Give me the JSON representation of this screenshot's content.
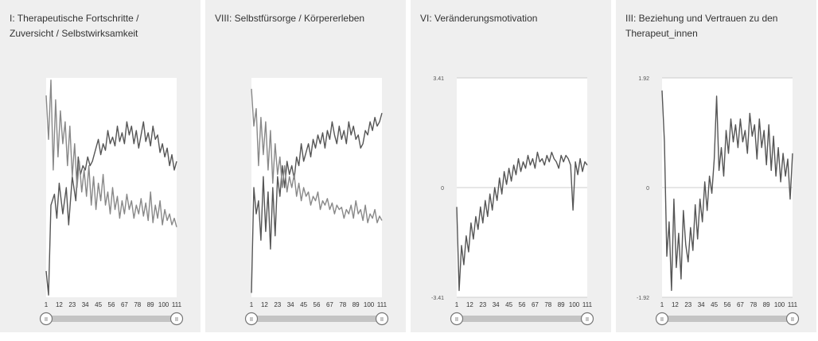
{
  "panels": [
    {
      "title": "I: Therapeutische Fortschritte /\nZuversicht / Selbstwirksamkeit"
    },
    {
      "title": "VIII: Selbstfürsorge / Körpererleben"
    },
    {
      "title": "VI: Veränderungsmotivation"
    },
    {
      "title": "III: Beziehung und Vertrauen zu den\nTherapeut_innen"
    }
  ],
  "slider": {
    "handle_glyph": "II"
  },
  "chart_data": [
    {
      "type": "line",
      "title": "I: Therapeutische Fortschritte / Zuversicht / Selbstwirksamkeit",
      "xlabel": "",
      "ylabel": "",
      "x_ticks": [
        1,
        12,
        23,
        34,
        45,
        56,
        67,
        78,
        89,
        100,
        111
      ],
      "y_ticks": [],
      "x_range": [
        1,
        111
      ],
      "y_range": [
        0,
        1
      ],
      "grid": false,
      "series": [
        {
          "color": "#555555",
          "x": [
            1,
            3,
            5,
            8,
            10,
            12,
            15,
            18,
            20,
            23,
            26,
            28,
            30,
            32,
            34,
            36,
            38,
            40,
            43,
            45,
            47,
            49,
            51,
            53,
            55,
            57,
            59,
            61,
            63,
            65,
            67,
            69,
            71,
            73,
            75,
            77,
            79,
            81,
            83,
            85,
            87,
            89,
            91,
            93,
            95,
            97,
            99,
            101,
            103,
            105,
            107,
            109,
            111
          ],
          "y": [
            0.12,
            0.01,
            0.42,
            0.47,
            0.36,
            0.52,
            0.38,
            0.5,
            0.33,
            0.55,
            0.44,
            0.64,
            0.56,
            0.6,
            0.58,
            0.64,
            0.6,
            0.62,
            0.68,
            0.72,
            0.65,
            0.7,
            0.67,
            0.76,
            0.7,
            0.73,
            0.69,
            0.78,
            0.71,
            0.75,
            0.7,
            0.8,
            0.74,
            0.78,
            0.7,
            0.76,
            0.68,
            0.74,
            0.8,
            0.71,
            0.75,
            0.69,
            0.78,
            0.72,
            0.74,
            0.66,
            0.7,
            0.64,
            0.68,
            0.6,
            0.65,
            0.58,
            0.62
          ]
        },
        {
          "color": "#888888",
          "x": [
            1,
            3,
            5,
            7,
            9,
            11,
            13,
            15,
            17,
            19,
            21,
            23,
            25,
            27,
            29,
            31,
            33,
            35,
            37,
            39,
            41,
            43,
            45,
            47,
            49,
            51,
            53,
            55,
            57,
            59,
            61,
            63,
            65,
            67,
            69,
            71,
            73,
            75,
            77,
            79,
            81,
            83,
            85,
            87,
            89,
            91,
            93,
            95,
            97,
            99,
            101,
            103,
            105,
            107,
            109,
            111
          ],
          "y": [
            0.92,
            0.72,
            0.99,
            0.58,
            0.9,
            0.64,
            0.85,
            0.7,
            0.8,
            0.6,
            0.78,
            0.55,
            0.7,
            0.5,
            0.62,
            0.48,
            0.58,
            0.46,
            0.6,
            0.42,
            0.55,
            0.4,
            0.52,
            0.44,
            0.56,
            0.42,
            0.48,
            0.38,
            0.5,
            0.4,
            0.46,
            0.36,
            0.44,
            0.38,
            0.47,
            0.4,
            0.44,
            0.36,
            0.42,
            0.38,
            0.45,
            0.37,
            0.43,
            0.35,
            0.48,
            0.34,
            0.42,
            0.36,
            0.44,
            0.33,
            0.4,
            0.35,
            0.38,
            0.33,
            0.36,
            0.32
          ]
        }
      ]
    },
    {
      "type": "line",
      "title": "VIII: Selbstfürsorge / Körpererleben",
      "xlabel": "",
      "ylabel": "",
      "x_ticks": [
        1,
        12,
        23,
        34,
        45,
        56,
        67,
        78,
        89,
        100,
        111
      ],
      "y_ticks": [],
      "x_range": [
        1,
        111
      ],
      "y_range": [
        0,
        1
      ],
      "grid": false,
      "series": [
        {
          "color": "#555555",
          "x": [
            1,
            3,
            5,
            7,
            9,
            11,
            13,
            15,
            17,
            19,
            21,
            23,
            25,
            27,
            29,
            31,
            33,
            35,
            37,
            39,
            41,
            43,
            45,
            47,
            49,
            51,
            53,
            55,
            57,
            59,
            61,
            63,
            65,
            67,
            69,
            71,
            73,
            75,
            77,
            79,
            81,
            83,
            85,
            87,
            89,
            91,
            93,
            95,
            97,
            99,
            101,
            103,
            105,
            107,
            109,
            111
          ],
          "y": [
            0.02,
            0.5,
            0.38,
            0.44,
            0.26,
            0.55,
            0.3,
            0.48,
            0.22,
            0.5,
            0.28,
            0.55,
            0.46,
            0.6,
            0.5,
            0.62,
            0.56,
            0.6,
            0.54,
            0.64,
            0.6,
            0.7,
            0.62,
            0.66,
            0.7,
            0.64,
            0.72,
            0.68,
            0.74,
            0.7,
            0.75,
            0.68,
            0.76,
            0.72,
            0.8,
            0.74,
            0.7,
            0.78,
            0.72,
            0.76,
            0.7,
            0.8,
            0.74,
            0.78,
            0.72,
            0.74,
            0.68,
            0.7,
            0.76,
            0.74,
            0.8,
            0.76,
            0.82,
            0.78,
            0.8,
            0.84
          ]
        },
        {
          "color": "#888888",
          "x": [
            1,
            3,
            5,
            7,
            9,
            11,
            13,
            15,
            17,
            19,
            21,
            23,
            25,
            27,
            29,
            31,
            33,
            35,
            37,
            39,
            41,
            43,
            45,
            47,
            49,
            51,
            53,
            55,
            57,
            59,
            61,
            63,
            65,
            67,
            69,
            71,
            73,
            75,
            77,
            79,
            81,
            83,
            85,
            87,
            89,
            91,
            93,
            95,
            97,
            99,
            101,
            103,
            105,
            107,
            109,
            111
          ],
          "y": [
            0.95,
            0.78,
            0.86,
            0.6,
            0.82,
            0.65,
            0.8,
            0.58,
            0.76,
            0.52,
            0.7,
            0.56,
            0.64,
            0.5,
            0.6,
            0.48,
            0.55,
            0.5,
            0.56,
            0.46,
            0.52,
            0.44,
            0.5,
            0.46,
            0.48,
            0.42,
            0.46,
            0.44,
            0.48,
            0.4,
            0.44,
            0.42,
            0.45,
            0.4,
            0.43,
            0.38,
            0.42,
            0.4,
            0.41,
            0.36,
            0.4,
            0.38,
            0.42,
            0.36,
            0.44,
            0.38,
            0.4,
            0.35,
            0.42,
            0.34,
            0.38,
            0.36,
            0.4,
            0.34,
            0.37,
            0.35
          ]
        }
      ]
    },
    {
      "type": "line",
      "title": "VI: Veränderungsmotivation",
      "xlabel": "",
      "ylabel": "",
      "x_ticks": [
        1,
        12,
        23,
        34,
        45,
        56,
        67,
        78,
        89,
        100,
        111
      ],
      "y_ticks": [
        -3.41,
        0,
        3.41
      ],
      "x_range": [
        1,
        111
      ],
      "y_range": [
        -3.41,
        3.41
      ],
      "grid": true,
      "series": [
        {
          "color": "#555555",
          "x": [
            1,
            3,
            5,
            7,
            9,
            11,
            13,
            15,
            17,
            19,
            21,
            23,
            25,
            27,
            29,
            31,
            33,
            35,
            37,
            39,
            41,
            43,
            45,
            47,
            49,
            51,
            53,
            55,
            57,
            59,
            61,
            63,
            65,
            67,
            69,
            71,
            73,
            75,
            77,
            79,
            81,
            83,
            85,
            87,
            89,
            91,
            93,
            95,
            97,
            99,
            101,
            103,
            105,
            107,
            109,
            111
          ],
          "y": [
            -0.6,
            -3.2,
            -1.8,
            -2.4,
            -1.5,
            -2.0,
            -1.1,
            -1.6,
            -0.9,
            -1.3,
            -0.6,
            -1.1,
            -0.4,
            -0.9,
            -0.2,
            -0.7,
            0.0,
            -0.4,
            0.3,
            -0.2,
            0.5,
            0.1,
            0.6,
            0.2,
            0.7,
            0.4,
            0.9,
            0.5,
            0.8,
            0.6,
            1.0,
            0.7,
            0.9,
            0.6,
            1.1,
            0.8,
            0.9,
            0.7,
            1.0,
            0.8,
            1.1,
            0.9,
            0.8,
            0.6,
            1.0,
            0.8,
            1.0,
            0.9,
            0.7,
            -0.7,
            0.8,
            0.4,
            0.9,
            0.5,
            0.8,
            0.7
          ]
        }
      ]
    },
    {
      "type": "line",
      "title": "III: Beziehung und Vertrauen zu den Therapeut_innen",
      "xlabel": "",
      "ylabel": "",
      "x_ticks": [
        1,
        12,
        23,
        34,
        45,
        56,
        67,
        78,
        89,
        100,
        111
      ],
      "y_ticks": [
        -1.92,
        0,
        1.92
      ],
      "x_range": [
        1,
        111
      ],
      "y_range": [
        -1.92,
        1.92
      ],
      "grid": true,
      "series": [
        {
          "color": "#555555",
          "x": [
            1,
            3,
            5,
            7,
            9,
            11,
            13,
            15,
            17,
            19,
            21,
            23,
            25,
            27,
            29,
            31,
            33,
            35,
            37,
            39,
            41,
            43,
            45,
            47,
            49,
            51,
            53,
            55,
            57,
            59,
            61,
            63,
            65,
            67,
            69,
            71,
            73,
            75,
            77,
            79,
            81,
            83,
            85,
            87,
            89,
            91,
            93,
            95,
            97,
            99,
            101,
            103,
            105,
            107,
            109,
            111
          ],
          "y": [
            1.7,
            0.8,
            -1.2,
            -0.6,
            -1.8,
            -0.2,
            -1.4,
            -0.8,
            -1.6,
            -0.4,
            -1.0,
            -1.3,
            -0.7,
            -1.1,
            -0.3,
            -0.9,
            -0.2,
            -0.6,
            0.1,
            -0.4,
            0.2,
            -0.1,
            0.5,
            1.6,
            0.3,
            0.7,
            0.2,
            1.0,
            0.6,
            1.2,
            0.8,
            1.1,
            0.7,
            1.2,
            0.8,
            1.0,
            0.6,
            1.3,
            0.9,
            1.1,
            0.5,
            1.2,
            0.7,
            1.0,
            0.4,
            1.1,
            0.3,
            0.9,
            0.2,
            0.7,
            0.1,
            0.6,
            0.2,
            0.5,
            -0.2,
            0.6
          ]
        }
      ]
    }
  ]
}
